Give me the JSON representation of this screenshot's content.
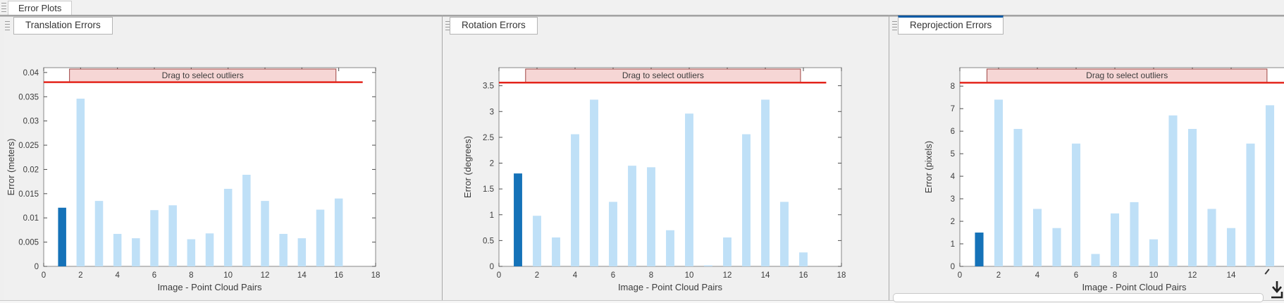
{
  "window": {
    "main_tab_label": "Error Plots"
  },
  "panels": [
    {
      "tab_label": "Translation Errors",
      "active": false
    },
    {
      "tab_label": "Rotation Errors",
      "active": false
    },
    {
      "tab_label": "Reprojection Errors",
      "active": true
    }
  ],
  "colors": {
    "bar_light": "#bfe0f7",
    "bar_selected": "#1572b8",
    "threshold_red": "#e3241b",
    "banner_fill": "#f6d6d5",
    "banner_border": "#a04543",
    "accent_blue": "#0d5ba6",
    "panel_bg": "#f0f0f0"
  },
  "icons": {
    "corner": "download-arrow-icon",
    "panel_handles": "grip-icon",
    "pointer": "mouse-cursor"
  },
  "chart_data": [
    {
      "type": "bar",
      "title": "Translation Errors",
      "xlabel": "Image - Point Cloud Pairs",
      "ylabel": "Error (meters)",
      "banner_label": "Drag to select outliers",
      "x": [
        1,
        2,
        3,
        4,
        5,
        6,
        7,
        8,
        9,
        10,
        11,
        12,
        13,
        14,
        15,
        16
      ],
      "values": [
        0.0121,
        0.0346,
        0.0135,
        0.0067,
        0.0058,
        0.0116,
        0.0126,
        0.0056,
        0.0068,
        0.016,
        0.0189,
        0.0135,
        0.0067,
        0.0058,
        0.0117,
        0.014
      ],
      "highlight_index": 0,
      "threshold": 0.038,
      "threshold_line_x_extent": 17.3,
      "banner_span_x": [
        1.4,
        15.85
      ],
      "xlim": [
        0,
        18
      ],
      "ylim": [
        0,
        0.041
      ],
      "xticks": [
        0,
        2,
        4,
        6,
        8,
        10,
        12,
        14,
        16,
        18
      ],
      "xtick_labels": [
        "0",
        "2",
        "4",
        "6",
        "8",
        "10",
        "12",
        "14",
        "16",
        "18"
      ],
      "yticks": [
        0,
        0.005,
        0.01,
        0.015,
        0.02,
        0.025,
        0.03,
        0.035,
        0.04
      ],
      "ytick_labels": [
        "0",
        "0.005",
        "0.01",
        "0.015",
        "0.02",
        "0.025",
        "0.03",
        "0.035",
        "0.04"
      ],
      "grid": false,
      "legend": false
    },
    {
      "type": "bar",
      "title": "Rotation Errors",
      "xlabel": "Image - Point Cloud Pairs",
      "ylabel": "Error (degrees)",
      "banner_label": "Drag to select outliers",
      "x": [
        1,
        2,
        3,
        4,
        5,
        6,
        7,
        8,
        9,
        10,
        11,
        12,
        13,
        14,
        15,
        16
      ],
      "values": [
        1.8,
        0.98,
        0.56,
        2.56,
        3.23,
        1.25,
        1.95,
        1.92,
        0.7,
        2.96,
        0.02,
        0.56,
        2.56,
        3.23,
        1.25,
        0.27
      ],
      "highlight_index": 0,
      "threshold": 3.56,
      "threshold_line_x_extent": 17.2,
      "banner_span_x": [
        1.4,
        15.85
      ],
      "xlim": [
        0,
        18
      ],
      "ylim": [
        0,
        3.85
      ],
      "xticks": [
        0,
        2,
        4,
        6,
        8,
        10,
        12,
        14,
        16,
        18
      ],
      "xtick_labels": [
        "0",
        "2",
        "4",
        "6",
        "8",
        "10",
        "12",
        "14",
        "16",
        "18"
      ],
      "yticks": [
        0,
        0.5,
        1,
        1.5,
        2,
        2.5,
        3,
        3.5
      ],
      "ytick_labels": [
        "0",
        "0.5",
        "1",
        "1.5",
        "2",
        "2.5",
        "3",
        "3.5"
      ],
      "grid": false,
      "legend": false
    },
    {
      "type": "bar",
      "title": "Reprojection Errors",
      "xlabel": "Image - Point Cloud Pairs",
      "ylabel": "Error (pixels)",
      "banner_label": "Drag to select outliers",
      "x": [
        1,
        2,
        3,
        4,
        5,
        6,
        7,
        8,
        9,
        10,
        11,
        12,
        13,
        14,
        15,
        16
      ],
      "values": [
        1.5,
        7.4,
        6.1,
        2.55,
        1.7,
        5.45,
        0.55,
        2.35,
        2.85,
        1.2,
        6.7,
        6.1,
        2.55,
        1.7,
        5.45,
        7.15
      ],
      "highlight_index": 0,
      "threshold": 8.15,
      "threshold_line_x_extent": 18,
      "banner_span_x": [
        1.4,
        15.85
      ],
      "xlim": [
        0,
        18
      ],
      "ylim": [
        0,
        8.82
      ],
      "xticks": [
        0,
        2,
        4,
        6,
        8,
        10,
        12,
        14
      ],
      "xtick_labels": [
        "0",
        "2",
        "4",
        "6",
        "8",
        "10",
        "12",
        "14"
      ],
      "yticks": [
        0,
        1,
        2,
        3,
        4,
        5,
        6,
        7,
        8
      ],
      "ytick_labels": [
        "0",
        "1",
        "2",
        "3",
        "4",
        "5",
        "6",
        "7",
        "8"
      ],
      "grid": false,
      "legend": false
    }
  ]
}
